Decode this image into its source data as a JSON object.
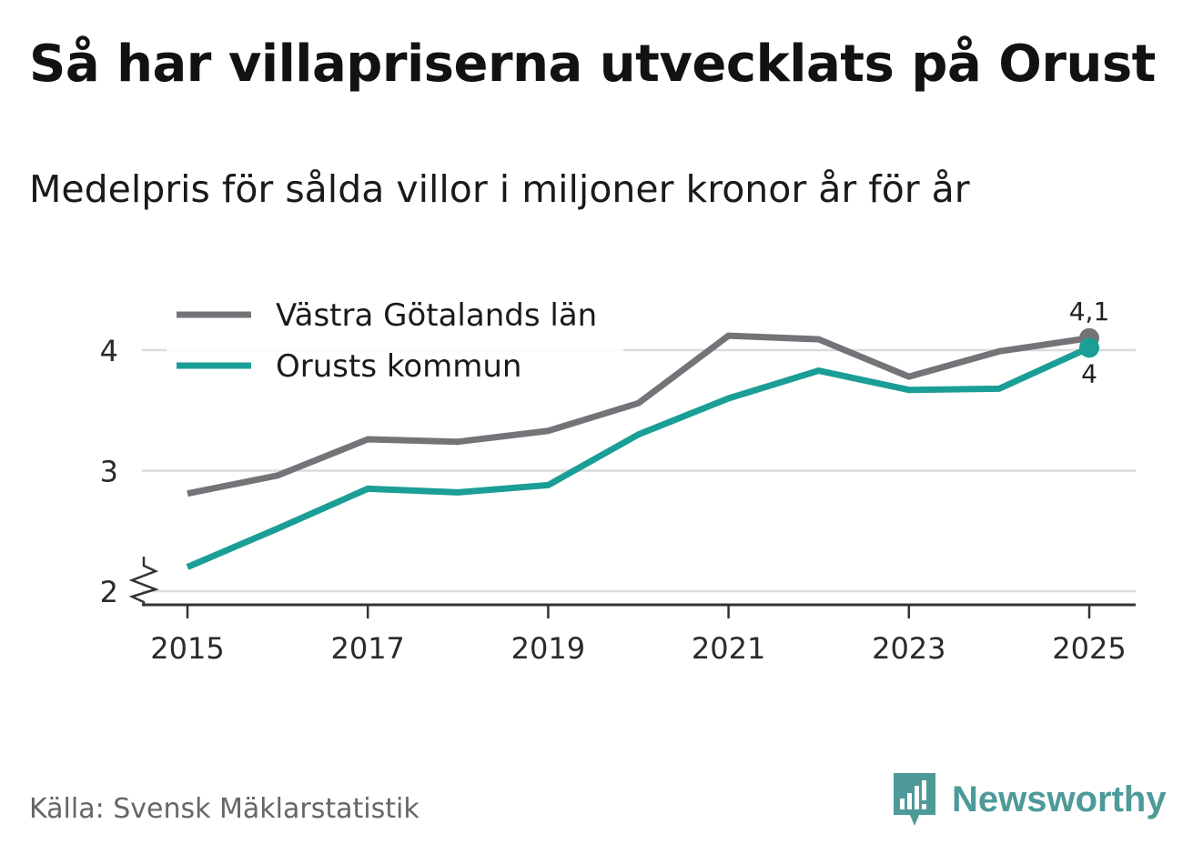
{
  "title": "Så har villapriserna utvecklats på Orust",
  "subtitle": "Medelpris för sålda villor i miljoner kronor år för år",
  "source": "Källa: Svensk Mäklarstatistik",
  "brand": {
    "name": "Newsworthy",
    "icon": "newsworthy-logo-icon",
    "color": "#4d9a98"
  },
  "chart_data": {
    "type": "line",
    "title": "Så har villapriserna utvecklats på Orust",
    "subtitle": "Medelpris för sålda villor i miljoner kronor år för år",
    "xlabel": "",
    "ylabel": "",
    "x": [
      2015,
      2016,
      2017,
      2018,
      2019,
      2020,
      2021,
      2022,
      2023,
      2024,
      2025
    ],
    "x_tick_labels": [
      "2015",
      "2017",
      "2019",
      "2021",
      "2023",
      "2025"
    ],
    "x_ticks": [
      2015,
      2017,
      2019,
      2021,
      2023,
      2025
    ],
    "y_ticks": [
      2,
      3,
      4
    ],
    "y_tick_labels": [
      "2",
      "3",
      "4"
    ],
    "ylim": [
      2,
      4.3
    ],
    "y_axis_break": true,
    "grid": true,
    "legend_position": "top-left",
    "series": [
      {
        "name": "Västra Götalands län",
        "color": "#747378",
        "values": [
          2.81,
          2.96,
          3.26,
          3.24,
          3.33,
          3.56,
          4.12,
          4.09,
          3.78,
          3.99,
          4.1
        ],
        "end_label": "4,1"
      },
      {
        "name": "Orusts kommun",
        "color": "#1a9e96",
        "values": [
          2.2,
          2.52,
          2.85,
          2.82,
          2.88,
          3.3,
          3.6,
          3.83,
          3.67,
          3.68,
          4.02
        ],
        "end_label": "4"
      }
    ]
  }
}
